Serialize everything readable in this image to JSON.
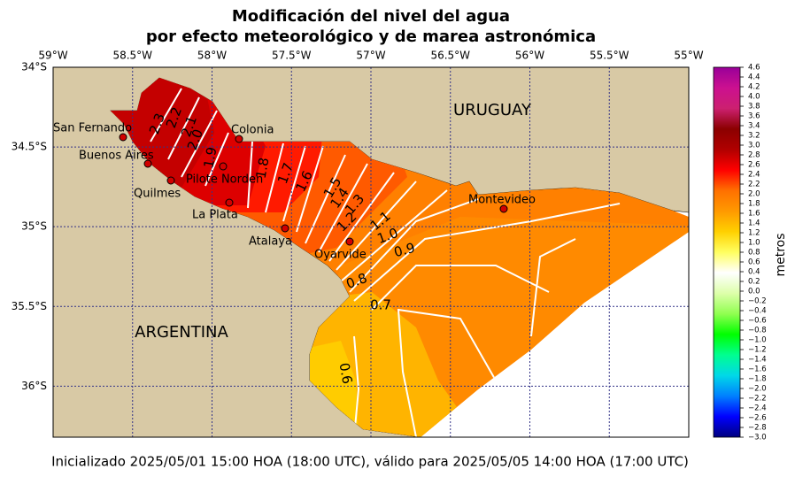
{
  "title": [
    "Modificación del nivel del agua",
    "por efecto meteorológico y de marea astronómica"
  ],
  "map": {
    "xlim": [
      -59,
      -55
    ],
    "ylim": [
      -36.32,
      -34
    ],
    "xticks": [
      {
        "value": -59,
        "label": "59°W"
      },
      {
        "value": -58.5,
        "label": "58.5°W"
      },
      {
        "value": -58,
        "label": "58°W"
      },
      {
        "value": -57.5,
        "label": "57.5°W"
      },
      {
        "value": -57,
        "label": "57°W"
      },
      {
        "value": -56.5,
        "label": "56.5°W"
      },
      {
        "value": -56,
        "label": "56°W"
      },
      {
        "value": -55.5,
        "label": "55.5°W"
      },
      {
        "value": -55,
        "label": "55°W"
      }
    ],
    "yticks": [
      {
        "value": -34,
        "label": "34°S"
      },
      {
        "value": -34.5,
        "label": "34.5°S"
      },
      {
        "value": -35,
        "label": "35°S"
      },
      {
        "value": -35.5,
        "label": "35.5°S"
      },
      {
        "value": -36,
        "label": "36°S"
      }
    ],
    "grid": true,
    "countries": [
      "URUGUAY",
      "ARGENTINA"
    ],
    "places": [
      "San Fernando",
      "Buenos Aires",
      "Quilmes",
      "Pilote Norden",
      "Colonia",
      "La Plata",
      "Atalaya",
      "Oyarvide",
      "Montevideo"
    ],
    "contour_labels": [
      2.3,
      2.2,
      2.1,
      2.0,
      1.9,
      1.8,
      1.7,
      1.6,
      1.5,
      1.4,
      1.3,
      1.2,
      1.1,
      1.0,
      0.9,
      0.8,
      0.7,
      0.6
    ]
  },
  "colorbar": {
    "label": "metros",
    "clim": [
      -3.0,
      4.6
    ],
    "colors": [
      "#000080",
      "#0000ff",
      "#0080ff",
      "#00d8e8",
      "#00ff90",
      "#00ff00",
      "#90ff50",
      "#ddffaa",
      "#ffffff",
      "#ffff60",
      "#ffd000",
      "#ff9900",
      "#ff7000",
      "#ff0000",
      "#b00000",
      "#8b0000",
      "#cc2070",
      "#cc1090",
      "#990099"
    ],
    "ticks": [
      4.6,
      4.4,
      4.2,
      {
        "value": 4,
        "label": "4.0"
      },
      3.8,
      3.6,
      3.4,
      3.2,
      {
        "value": 3,
        "label": "3.0"
      },
      2.8,
      2.6,
      2.4,
      2.2,
      {
        "value": 2,
        "label": "2.0"
      },
      1.8,
      1.6,
      1.4,
      1.2,
      {
        "value": 1,
        "label": "1.0"
      },
      0.8,
      0.6,
      0.4,
      0.2,
      {
        "value": 0,
        "label": "0.0"
      },
      {
        "value": -0.2,
        "label": "−0.2"
      },
      {
        "value": -0.4,
        "label": "−0.4"
      },
      {
        "value": -0.6,
        "label": "−0.6"
      },
      {
        "value": -0.8,
        "label": "−0.8"
      },
      {
        "value": -1,
        "label": "−1.0"
      },
      {
        "value": -1.2,
        "label": "−1.2"
      },
      {
        "value": -1.4,
        "label": "−1.4"
      },
      {
        "value": -1.6,
        "label": "−1.6"
      },
      {
        "value": -1.8,
        "label": "−1.8"
      },
      {
        "value": -2,
        "label": "−2.0"
      },
      {
        "value": -2.2,
        "label": "−2.2"
      },
      {
        "value": -2.4,
        "label": "−2.4"
      },
      {
        "value": -2.6,
        "label": "−2.6"
      },
      {
        "value": -2.8,
        "label": "−2.8"
      },
      {
        "value": -3,
        "label": "−3.0"
      }
    ]
  },
  "footer": "Inicializado 2025/05/01 15:00 HOA (18:00 UTC), válido para 2025/05/05 14:00 HOA (17:00 UTC)"
}
